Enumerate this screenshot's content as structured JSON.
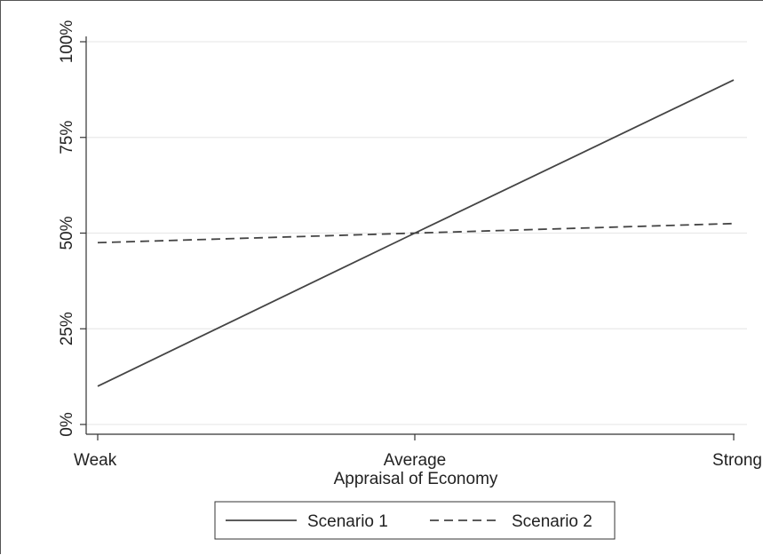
{
  "chart_data": {
    "type": "line",
    "categories": [
      "Weak",
      "Average",
      "Strong"
    ],
    "xlabel": "Appraisal of Economy",
    "ylabel": "",
    "ylim": [
      0,
      1
    ],
    "yticks": [
      {
        "value": 0,
        "label": "0%"
      },
      {
        "value": 0.25,
        "label": "25%"
      },
      {
        "value": 0.5,
        "label": "50%"
      },
      {
        "value": 0.75,
        "label": "75%"
      },
      {
        "value": 1,
        "label": "100%"
      }
    ],
    "grid": true,
    "legend_position": "bottom",
    "series": [
      {
        "name": "Scenario 1",
        "values": [
          0.1,
          0.5,
          0.9
        ],
        "color": "#444444",
        "dash": "solid"
      },
      {
        "name": "Scenario 2",
        "values": [
          0.475,
          0.5,
          0.525
        ],
        "color": "#444444",
        "dash": "dashed"
      }
    ]
  }
}
